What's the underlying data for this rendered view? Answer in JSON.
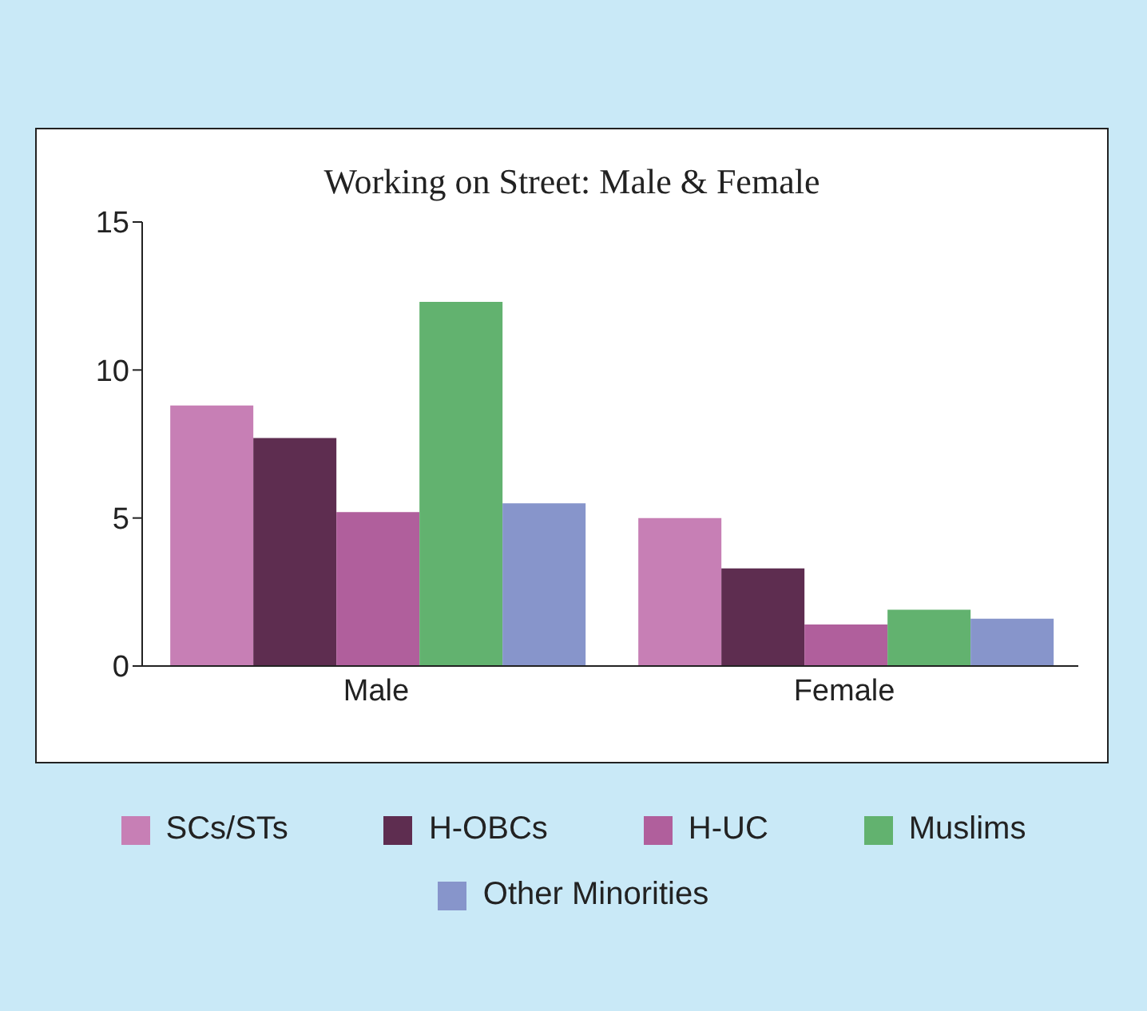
{
  "chart_data": {
    "type": "bar",
    "title": "Working on Street: Male & Female",
    "categories": [
      "Male",
      "Female"
    ],
    "ylim": [
      0,
      15
    ],
    "yticks": [
      0,
      5,
      10,
      15
    ],
    "legend": "bottom",
    "series": [
      {
        "name": "SCs/STs",
        "color": "#c77fb5",
        "values": [
          8.8,
          5.0
        ]
      },
      {
        "name": "H-OBCs",
        "color": "#5e2d50",
        "values": [
          7.7,
          3.3
        ]
      },
      {
        "name": "H-UC",
        "color": "#b05f9c",
        "values": [
          5.2,
          1.4
        ]
      },
      {
        "name": "Muslims",
        "color": "#62b26f",
        "values": [
          12.3,
          1.9
        ]
      },
      {
        "name": "Other Minorities",
        "color": "#8795cb",
        "values": [
          5.5,
          1.6
        ]
      }
    ]
  }
}
